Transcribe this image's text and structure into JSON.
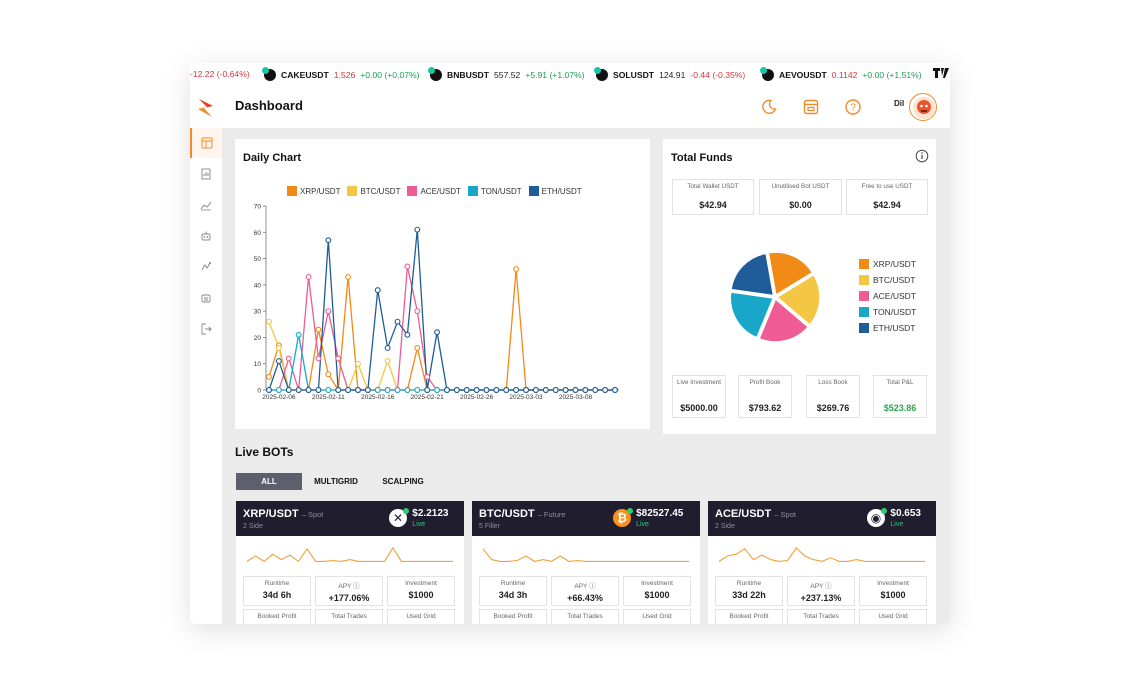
{
  "ticker": [
    {
      "symbol": "",
      "price": "-12.22 (-0.64%)",
      "change": "",
      "dir": "neg"
    },
    {
      "symbol": "CAKEUSDT",
      "price": "1.526",
      "change": "+0.00 (+0.07%)",
      "dir": "pos"
    },
    {
      "symbol": "BNBUSDT",
      "price": "557.52",
      "change": "+5.91 (+1.07%)",
      "dir": "pos"
    },
    {
      "symbol": "SOLUSDT",
      "price": "124.91",
      "change": "-0.44 (-0.35%)",
      "dir": "neg"
    },
    {
      "symbol": "AEVOUSDT",
      "price": "0.1142",
      "change": "+0.00 (+1.51%)",
      "dir": "pos"
    }
  ],
  "header": {
    "title": "Dashboard",
    "lang": "Dil",
    "icons": [
      "moon-icon",
      "window-icon",
      "help-icon"
    ]
  },
  "sidebar": {
    "items": [
      "dashboard-icon",
      "reports-icon",
      "chart-icon",
      "bot-icon",
      "signal-icon",
      "robot-icon",
      "logout-icon"
    ]
  },
  "daily_chart": {
    "title": "Daily Chart"
  },
  "chart_data": {
    "type": "line",
    "title": "Daily Chart",
    "xlabel": "",
    "ylabel": "",
    "ylim": [
      0,
      70
    ],
    "yticks": [
      0,
      10,
      20,
      30,
      40,
      50,
      60,
      70
    ],
    "x_tick_labels": [
      "2025-02-06",
      "2025-02-11",
      "2025-02-16",
      "2025-02-21",
      "2025-02-26",
      "2025-03-03",
      "2025-03-08"
    ],
    "x_start": "2025-02-04",
    "x_count": 36,
    "series": [
      {
        "name": "XRP/USDT",
        "color": "#f28a16",
        "values": [
          5,
          17,
          0,
          0,
          0,
          23,
          6,
          0,
          43,
          0,
          0,
          0,
          0,
          0,
          0,
          16,
          0,
          0,
          0,
          0,
          0,
          0,
          0,
          0,
          0,
          46,
          0,
          0,
          0,
          0,
          0,
          0,
          0,
          0,
          0,
          0
        ]
      },
      {
        "name": "BTC/USDT",
        "color": "#f3c644",
        "values": [
          26,
          16,
          0,
          0,
          0,
          0,
          0,
          0,
          0,
          10,
          0,
          0,
          11,
          0,
          0,
          0,
          0,
          0,
          0,
          0,
          0,
          0,
          0,
          0,
          0,
          0,
          0,
          0,
          0,
          0,
          0,
          0,
          0,
          0,
          0,
          0
        ]
      },
      {
        "name": "ACE/USDT",
        "color": "#ef5b93",
        "values": [
          0,
          0,
          12,
          0,
          43,
          12,
          30,
          12,
          0,
          0,
          0,
          0,
          0,
          0,
          47,
          30,
          5,
          0,
          0,
          0,
          0,
          0,
          0,
          0,
          0,
          0,
          0,
          0,
          0,
          0,
          0,
          0,
          0,
          0,
          0,
          0
        ]
      },
      {
        "name": "TON/USDT",
        "color": "#18a7c9",
        "values": [
          0,
          0,
          0,
          21,
          0,
          0,
          0,
          0,
          0,
          0,
          0,
          0,
          0,
          0,
          0,
          0,
          0,
          0,
          0,
          0,
          0,
          0,
          0,
          0,
          0,
          0,
          0,
          0,
          0,
          0,
          0,
          0,
          0,
          0,
          0,
          0
        ]
      },
      {
        "name": "ETH/USDT",
        "color": "#1f5c99",
        "values": [
          0,
          11,
          0,
          0,
          0,
          0,
          57,
          0,
          0,
          0,
          0,
          38,
          16,
          26,
          21,
          61,
          0,
          22,
          0,
          0,
          0,
          0,
          0,
          0,
          0,
          0,
          0,
          0,
          0,
          0,
          0,
          0,
          0,
          0,
          0,
          0
        ]
      }
    ]
  },
  "total_funds": {
    "title": "Total Funds",
    "top_stats": [
      {
        "label": "Total Wallet USDT",
        "value": "$42.94"
      },
      {
        "label": "Unutilised Bot USDT",
        "value": "$0.00"
      },
      {
        "label": "Free to use USDT",
        "value": "$42.94"
      }
    ],
    "bottom_stats": [
      {
        "label": "Live Investment",
        "value": "$5000.00"
      },
      {
        "label": "Profit Book",
        "value": "$793.62"
      },
      {
        "label": "Loss Book",
        "value": "$269.76"
      },
      {
        "label": "Total P&L",
        "value": "$523.86"
      }
    ],
    "pie": [
      {
        "name": "XRP/USDT",
        "color": "#f28a16",
        "value": 19
      },
      {
        "name": "BTC/USDT",
        "color": "#f3c644",
        "value": 20
      },
      {
        "name": "ACE/USDT",
        "color": "#ef5b93",
        "value": 20
      },
      {
        "name": "TON/USDT",
        "color": "#18a7c9",
        "value": 21
      },
      {
        "name": "ETH/USDT",
        "color": "#1f5c99",
        "value": 20
      }
    ]
  },
  "live_bots": {
    "title": "Live BOTs",
    "tabs": [
      "ALL",
      "MULTIGRID",
      "SCALPING"
    ],
    "bots": [
      {
        "pair": "XRP/USDT",
        "type": "– Spot",
        "sub": "2 Side",
        "price": "$2.2123",
        "status": "Live",
        "coin_color": "#ffffff",
        "coin_glyph": "✕",
        "stats": [
          {
            "label": "Runtime",
            "value": "34d 6h"
          },
          {
            "label": "APY ⓘ",
            "value": "+177.06%"
          },
          {
            "label": "Investment",
            "value": "$1000"
          }
        ],
        "stats2": [
          "Booked Profit",
          "Total Trades",
          "Used Grid"
        ],
        "spark": [
          0.2,
          0.5,
          0.2,
          0.6,
          0.3,
          0.55,
          0.2,
          0.9,
          0.2,
          0.2,
          0.25,
          0.2,
          0.3,
          0.2,
          0.2,
          0.2,
          0.2,
          0.95,
          0.2,
          0.2,
          0.2,
          0.2,
          0.2,
          0.2,
          0.2
        ]
      },
      {
        "pair": "BTC/USDT",
        "type": "– Future",
        "sub": "5 Filler",
        "price": "$82527.45",
        "status": "Live",
        "coin_color": "#f7931a",
        "coin_glyph": "₿",
        "stats": [
          {
            "label": "Runtime",
            "value": "34d 3h"
          },
          {
            "label": "APY ⓘ",
            "value": "+66.43%"
          },
          {
            "label": "Investment",
            "value": "$1000"
          }
        ],
        "stats2": [
          "Booked Profit",
          "Total Trades",
          "Used Grid"
        ],
        "spark": [
          0.9,
          0.3,
          0.2,
          0.2,
          0.25,
          0.5,
          0.2,
          0.3,
          0.2,
          0.5,
          0.2,
          0.25,
          0.2,
          0.2,
          0.2,
          0.2,
          0.2,
          0.2,
          0.2,
          0.2,
          0.2,
          0.2,
          0.2,
          0.2,
          0.2
        ]
      },
      {
        "pair": "ACE/USDT",
        "type": "– Spot",
        "sub": "2 Side",
        "price": "$0.653",
        "status": "Live",
        "coin_color": "#ffffff",
        "coin_glyph": "◉",
        "stats": [
          {
            "label": "Runtime",
            "value": "33d 22h"
          },
          {
            "label": "APY ⓘ",
            "value": "+237.13%"
          },
          {
            "label": "Investment",
            "value": "$1000"
          }
        ],
        "stats2": [
          "Booked Profit",
          "Total Trades",
          "Used Grid"
        ],
        "spark": [
          0.2,
          0.5,
          0.6,
          0.9,
          0.3,
          0.55,
          0.3,
          0.2,
          0.25,
          0.95,
          0.5,
          0.3,
          0.2,
          0.4,
          0.2,
          0.2,
          0.3,
          0.2,
          0.2,
          0.2,
          0.2,
          0.2,
          0.2,
          0.2,
          0.2
        ]
      }
    ]
  }
}
